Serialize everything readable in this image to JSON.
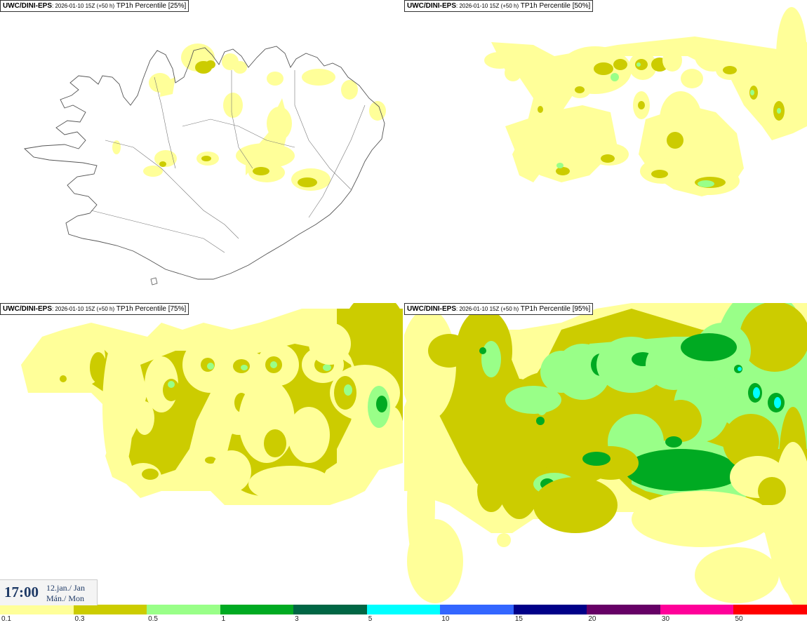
{
  "panels": [
    {
      "model": "UWC/DINI-EPS",
      "run": ": 2026-01-10 15Z (+50 h)",
      "variable": " TP1h Percentile [25%]",
      "percentile": 25
    },
    {
      "model": "UWC/DINI-EPS",
      "run": ": 2026-01-10 15Z (+50 h)",
      "variable": " TP1h Percentile [50%]",
      "percentile": 50
    },
    {
      "model": "UWC/DINI-EPS",
      "run": ": 2026-01-10 15Z (+50 h)",
      "variable": " TP1h Percentile [75%]",
      "percentile": 75
    },
    {
      "model": "UWC/DINI-EPS",
      "run": ": 2026-01-10 15Z (+50 h)",
      "variable": " TP1h Percentile [95%]",
      "percentile": 95
    }
  ],
  "valid_time": {
    "time": "17:00",
    "date_line1": "12.jan./ Jan",
    "date_line2": "Mán./ Mon"
  },
  "legend": {
    "labels": [
      "0.1",
      "0.3",
      "0.5",
      "1",
      "3",
      "5",
      "10",
      "15",
      "20",
      "30",
      "50"
    ],
    "colors": [
      "#ffff99",
      "#cccc00",
      "#99ff88",
      "#00aa22",
      "#006644",
      "#00ffff",
      "#3366ff",
      "#000088",
      "#660066",
      "#ff0099",
      "#ff0000"
    ]
  }
}
